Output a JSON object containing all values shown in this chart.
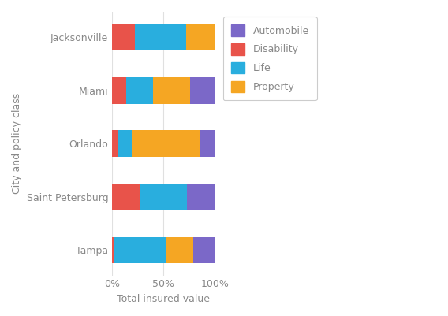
{
  "categories": [
    "Tampa",
    "Saint Petersburg",
    "Orlando",
    "Miami",
    "Jacksonville"
  ],
  "series": {
    "Disability": [
      2,
      27,
      5,
      14,
      22
    ],
    "Life": [
      50,
      46,
      14,
      26,
      50
    ],
    "Property": [
      27,
      0,
      66,
      36,
      28
    ],
    "Automobile": [
      21,
      27,
      15,
      24,
      0
    ]
  },
  "colors": {
    "Automobile": "#7B68C8",
    "Disability": "#E8534A",
    "Life": "#29AEDE",
    "Property": "#F5A623"
  },
  "legend_order": [
    "Automobile",
    "Disability",
    "Life",
    "Property"
  ],
  "xlabel": "Total insured value",
  "ylabel": "City and policy class",
  "xticks": [
    0,
    50,
    100
  ],
  "xtick_labels": [
    "0%",
    "50%",
    "100%"
  ],
  "background_color": "#ffffff",
  "plot_bg_color": "#ffffff",
  "grid_color": "#e0e0e0",
  "axis_label_color": "#888888",
  "tick_label_color": "#888888",
  "legend_border_color": "#cccccc",
  "bar_height": 0.5,
  "figwidth": 5.68,
  "figheight": 4.01,
  "dpi": 100
}
